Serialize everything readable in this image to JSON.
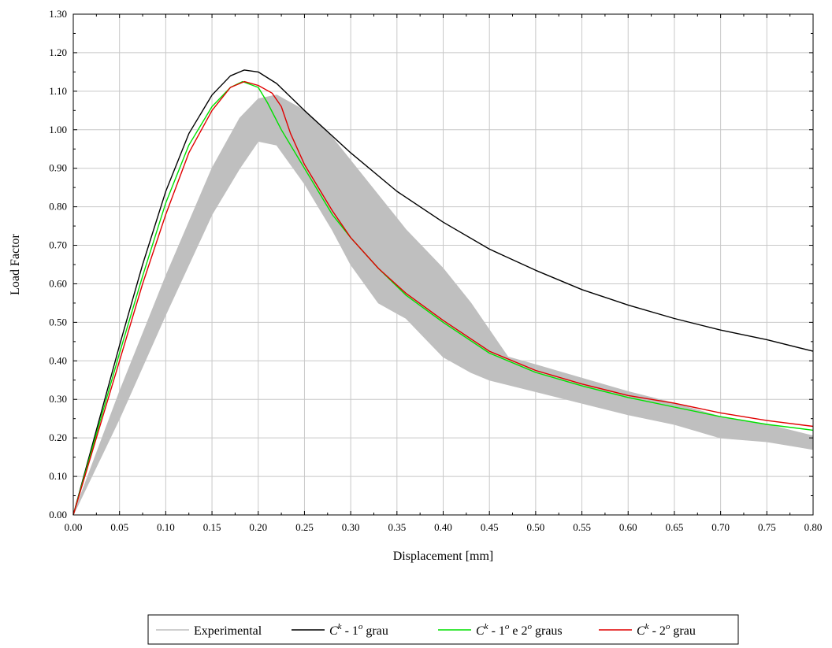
{
  "chart_data": {
    "type": "line",
    "title": "",
    "xlabel": "Displacement [mm]",
    "ylabel": "Load Factor",
    "xlim": [
      0,
      0.8
    ],
    "ylim": [
      0,
      1.3
    ],
    "xticks": [
      "0.00",
      "0.05",
      "0.10",
      "0.15",
      "0.20",
      "0.25",
      "0.30",
      "0.35",
      "0.40",
      "0.45",
      "0.50",
      "0.55",
      "0.60",
      "0.65",
      "0.70",
      "0.75",
      "0.80"
    ],
    "yticks": [
      "0.00",
      "0.10",
      "0.20",
      "0.30",
      "0.40",
      "0.50",
      "0.60",
      "0.70",
      "0.80",
      "0.90",
      "1.00",
      "1.10",
      "1.20",
      "1.30"
    ],
    "grid": true,
    "legend_position": "bottom-center",
    "experimental_band": {
      "name": "Experimental",
      "color": "#bfbfbf",
      "upper": [
        [
          0,
          0
        ],
        [
          0.05,
          0.32
        ],
        [
          0.1,
          0.62
        ],
        [
          0.15,
          0.9
        ],
        [
          0.18,
          1.03
        ],
        [
          0.2,
          1.08
        ],
        [
          0.22,
          1.09
        ],
        [
          0.25,
          1.05
        ],
        [
          0.28,
          0.98
        ],
        [
          0.3,
          0.92
        ],
        [
          0.33,
          0.83
        ],
        [
          0.36,
          0.74
        ],
        [
          0.4,
          0.64
        ],
        [
          0.43,
          0.55
        ],
        [
          0.45,
          0.48
        ],
        [
          0.47,
          0.41
        ],
        [
          0.5,
          0.39
        ],
        [
          0.55,
          0.355
        ],
        [
          0.6,
          0.32
        ],
        [
          0.65,
          0.29
        ],
        [
          0.7,
          0.255
        ],
        [
          0.75,
          0.235
        ],
        [
          0.8,
          0.205
        ]
      ],
      "lower": [
        [
          0,
          0
        ],
        [
          0.05,
          0.25
        ],
        [
          0.1,
          0.52
        ],
        [
          0.15,
          0.78
        ],
        [
          0.18,
          0.9
        ],
        [
          0.2,
          0.97
        ],
        [
          0.22,
          0.96
        ],
        [
          0.25,
          0.86
        ],
        [
          0.28,
          0.74
        ],
        [
          0.3,
          0.65
        ],
        [
          0.33,
          0.55
        ],
        [
          0.36,
          0.51
        ],
        [
          0.38,
          0.46
        ],
        [
          0.4,
          0.41
        ],
        [
          0.43,
          0.37
        ],
        [
          0.45,
          0.35
        ],
        [
          0.5,
          0.32
        ],
        [
          0.55,
          0.29
        ],
        [
          0.6,
          0.26
        ],
        [
          0.65,
          0.235
        ],
        [
          0.7,
          0.2
        ],
        [
          0.75,
          0.19
        ],
        [
          0.8,
          0.17
        ]
      ]
    },
    "series": [
      {
        "name": "Experimental",
        "legend_label": "Experimental",
        "color": "#bfbfbf",
        "points": []
      },
      {
        "name": "C^k - 1º grau",
        "legend_base": "C",
        "legend_sup": "k",
        "legend_rest": " - 1",
        "legend_sup2": "o",
        "legend_tail": " grau",
        "color": "#000000",
        "points": [
          [
            0,
            0
          ],
          [
            0.025,
            0.22
          ],
          [
            0.05,
            0.44
          ],
          [
            0.075,
            0.65
          ],
          [
            0.1,
            0.84
          ],
          [
            0.125,
            0.99
          ],
          [
            0.15,
            1.09
          ],
          [
            0.17,
            1.14
          ],
          [
            0.185,
            1.155
          ],
          [
            0.2,
            1.15
          ],
          [
            0.22,
            1.12
          ],
          [
            0.25,
            1.05
          ],
          [
            0.3,
            0.94
          ],
          [
            0.35,
            0.84
          ],
          [
            0.4,
            0.76
          ],
          [
            0.45,
            0.69
          ],
          [
            0.5,
            0.635
          ],
          [
            0.55,
            0.585
          ],
          [
            0.6,
            0.545
          ],
          [
            0.65,
            0.51
          ],
          [
            0.7,
            0.48
          ],
          [
            0.75,
            0.455
          ],
          [
            0.8,
            0.425
          ]
        ]
      },
      {
        "name": "C^k - 1º e 2º graus",
        "legend_base": "C",
        "legend_sup": "k",
        "legend_rest": " - 1",
        "legend_sup2": "o",
        "legend_tail": " e 2",
        "legend_sup3": "o",
        "legend_tail2": " graus",
        "color": "#00e000",
        "points": [
          [
            0,
            0
          ],
          [
            0.025,
            0.21
          ],
          [
            0.05,
            0.42
          ],
          [
            0.075,
            0.62
          ],
          [
            0.1,
            0.81
          ],
          [
            0.125,
            0.96
          ],
          [
            0.15,
            1.06
          ],
          [
            0.17,
            1.11
          ],
          [
            0.183,
            1.125
          ],
          [
            0.2,
            1.11
          ],
          [
            0.21,
            1.07
          ],
          [
            0.225,
            1.0
          ],
          [
            0.25,
            0.9
          ],
          [
            0.28,
            0.78
          ],
          [
            0.3,
            0.72
          ],
          [
            0.33,
            0.64
          ],
          [
            0.36,
            0.57
          ],
          [
            0.4,
            0.5
          ],
          [
            0.45,
            0.42
          ],
          [
            0.5,
            0.37
          ],
          [
            0.55,
            0.335
          ],
          [
            0.6,
            0.305
          ],
          [
            0.65,
            0.28
          ],
          [
            0.7,
            0.255
          ],
          [
            0.75,
            0.235
          ],
          [
            0.8,
            0.22
          ]
        ]
      },
      {
        "name": "C^k - 2º grau",
        "legend_base": "C",
        "legend_sup": "k",
        "legend_rest": " - 2",
        "legend_sup2": "o",
        "legend_tail": " grau",
        "color": "#e00000",
        "points": [
          [
            0,
            0
          ],
          [
            0.025,
            0.2
          ],
          [
            0.05,
            0.4
          ],
          [
            0.075,
            0.6
          ],
          [
            0.1,
            0.78
          ],
          [
            0.125,
            0.94
          ],
          [
            0.15,
            1.05
          ],
          [
            0.17,
            1.11
          ],
          [
            0.185,
            1.125
          ],
          [
            0.2,
            1.115
          ],
          [
            0.215,
            1.095
          ],
          [
            0.225,
            1.06
          ],
          [
            0.235,
            0.99
          ],
          [
            0.25,
            0.91
          ],
          [
            0.28,
            0.79
          ],
          [
            0.3,
            0.72
          ],
          [
            0.33,
            0.64
          ],
          [
            0.36,
            0.575
          ],
          [
            0.4,
            0.505
          ],
          [
            0.45,
            0.425
          ],
          [
            0.5,
            0.375
          ],
          [
            0.55,
            0.34
          ],
          [
            0.6,
            0.31
          ],
          [
            0.65,
            0.29
          ],
          [
            0.7,
            0.265
          ],
          [
            0.75,
            0.245
          ],
          [
            0.8,
            0.23
          ]
        ]
      }
    ]
  }
}
